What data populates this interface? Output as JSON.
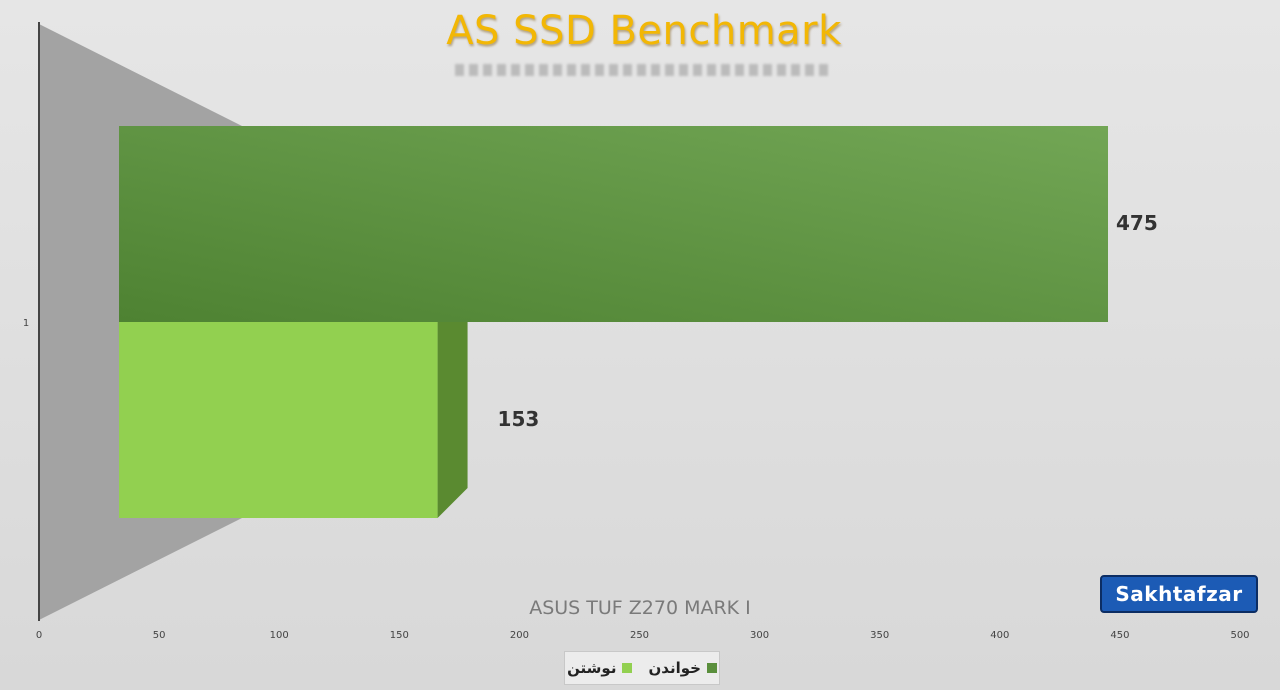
{
  "chart_data": {
    "type": "bar",
    "orientation": "horizontal",
    "title": "AS SSD Benchmark",
    "xlabel": "ASUS TUF Z270 MARK I",
    "ylabel": "",
    "categories": [
      "1"
    ],
    "series": [
      {
        "name": "خواندن",
        "values": [
          475
        ],
        "color": "#5a8f3c"
      },
      {
        "name": "نوشتن",
        "values": [
          153
        ],
        "color": "#92d050"
      }
    ],
    "data_labels": [
      "475",
      "153"
    ],
    "xlim": [
      0,
      500
    ],
    "x_ticks": [
      "0",
      "50",
      "100",
      "150",
      "200",
      "250",
      "300",
      "350",
      "400",
      "450",
      "500"
    ],
    "grid": false,
    "legend_position": "bottom",
    "style": "3d"
  },
  "logo_text": "Sakhtafzar"
}
